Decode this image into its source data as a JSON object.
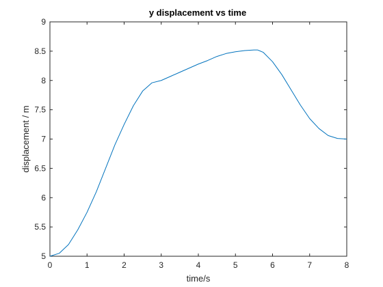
{
  "chart_data": {
    "type": "line",
    "title": "y displacement vs time",
    "xlabel": "time/s",
    "ylabel": "displacement / m",
    "xlim": [
      0,
      8
    ],
    "ylim": [
      5,
      9
    ],
    "xticks": [
      "0",
      "1",
      "2",
      "3",
      "4",
      "5",
      "6",
      "7",
      "8"
    ],
    "yticks": [
      "5",
      "5.5",
      "6",
      "6.5",
      "7",
      "7.5",
      "8",
      "8.5",
      "9"
    ],
    "grid": false,
    "line_color": "#0072BD",
    "series": [
      {
        "x": [
          0,
          0.25,
          0.5,
          0.75,
          1.0,
          1.25,
          1.5,
          1.75,
          2.0,
          2.25,
          2.5,
          2.75,
          3.0,
          3.25,
          3.5,
          3.75,
          4.0,
          4.25,
          4.5,
          4.75,
          5.0,
          5.25,
          5.5,
          5.6,
          5.75,
          6.0,
          6.25,
          6.5,
          6.75,
          7.0,
          7.25,
          7.5,
          7.75,
          8.0
        ],
        "y": [
          5.0,
          5.05,
          5.2,
          5.45,
          5.75,
          6.1,
          6.5,
          6.9,
          7.25,
          7.57,
          7.82,
          7.96,
          8.0,
          8.07,
          8.14,
          8.21,
          8.28,
          8.34,
          8.41,
          8.46,
          8.49,
          8.51,
          8.52,
          8.52,
          8.48,
          8.32,
          8.1,
          7.84,
          7.58,
          7.35,
          7.18,
          7.06,
          7.01,
          7.0
        ]
      }
    ]
  }
}
